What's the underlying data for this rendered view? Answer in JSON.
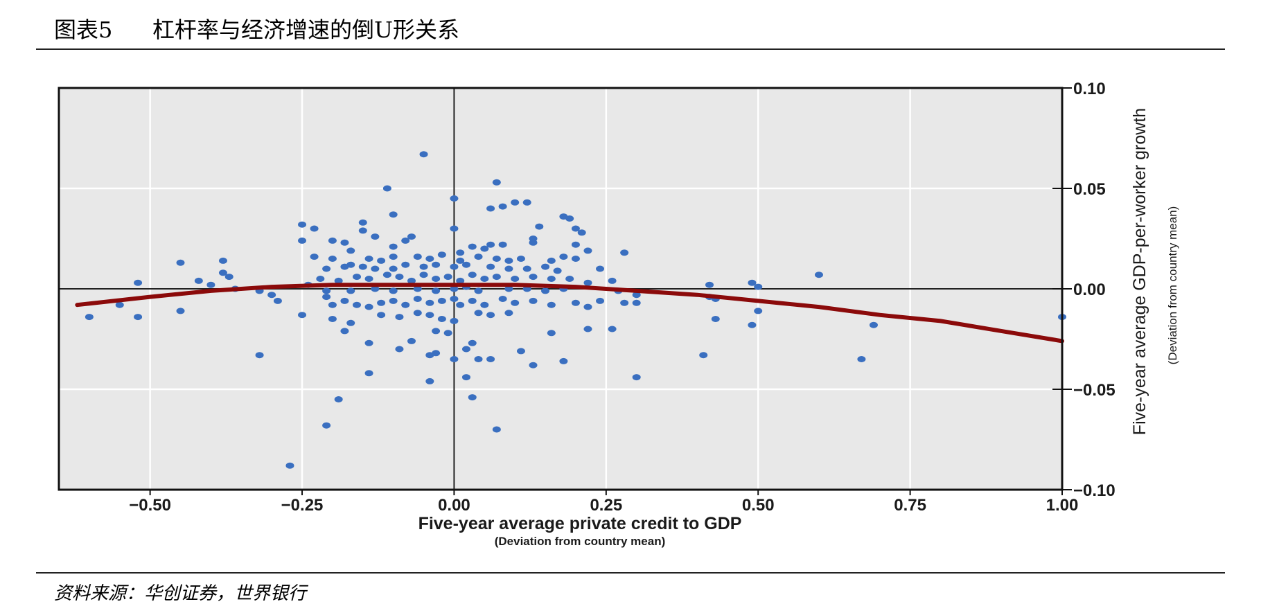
{
  "header": {
    "figure_number": "图表5",
    "title": "杠杆率与经济增速的倒U形关系"
  },
  "source": "资料来源：华创证券，世界银行",
  "chart_data": {
    "type": "scatter",
    "xlabel": "Five-year average private credit to GDP",
    "xlabel_sub": "(Deviation from country mean)",
    "ylabel": "Five-year average GDP-per-worker growth",
    "ylabel_sub": "(Deviation from country mean)",
    "xlim": [
      -0.65,
      1.0
    ],
    "ylim": [
      -0.1,
      0.1
    ],
    "x_ticks": [
      -0.5,
      -0.25,
      0.0,
      0.25,
      0.5,
      0.75,
      1.0
    ],
    "x_tick_labels": [
      "−0.50",
      "−0.25",
      "0.00",
      "0.25",
      "0.50",
      "0.75",
      "1.00"
    ],
    "y_ticks": [
      0.1,
      0.05,
      0.0,
      -0.05,
      -0.1
    ],
    "y_tick_labels": [
      "0.10",
      "0.05",
      "0.00",
      "−0.05",
      "−0.10"
    ],
    "y_axis_side": "right",
    "grid": true,
    "colors": {
      "background": "#e8e8e8",
      "points": "#3a6fc0",
      "curve": "#8b0a0a",
      "grid": "#ffffff"
    },
    "fit_curve": {
      "type": "quadratic",
      "points": [
        [
          -0.62,
          -0.008
        ],
        [
          -0.5,
          -0.004
        ],
        [
          -0.4,
          -0.001
        ],
        [
          -0.3,
          0.001
        ],
        [
          -0.2,
          0.002
        ],
        [
          -0.1,
          0.002
        ],
        [
          0.0,
          0.002
        ],
        [
          0.1,
          0.002
        ],
        [
          0.2,
          0.001
        ],
        [
          0.3,
          -0.001
        ],
        [
          0.4,
          -0.003
        ],
        [
          0.5,
          -0.006
        ],
        [
          0.6,
          -0.009
        ],
        [
          0.7,
          -0.013
        ],
        [
          0.8,
          -0.016
        ],
        [
          0.9,
          -0.021
        ],
        [
          1.0,
          -0.026
        ]
      ]
    },
    "points": [
      [
        -0.05,
        0.067
      ],
      [
        0.07,
        0.053
      ],
      [
        0.0,
        0.045
      ],
      [
        -0.11,
        0.05
      ],
      [
        0.1,
        0.043
      ],
      [
        0.12,
        0.043
      ],
      [
        0.06,
        0.04
      ],
      [
        0.08,
        0.041
      ],
      [
        -0.1,
        0.037
      ],
      [
        0.18,
        0.036
      ],
      [
        0.19,
        0.035
      ],
      [
        -0.25,
        0.032
      ],
      [
        -0.15,
        0.033
      ],
      [
        -0.23,
        0.03
      ],
      [
        0.0,
        0.03
      ],
      [
        0.2,
        0.03
      ],
      [
        0.14,
        0.031
      ],
      [
        -0.15,
        0.029
      ],
      [
        0.21,
        0.028
      ],
      [
        -0.25,
        0.024
      ],
      [
        -0.13,
        0.026
      ],
      [
        -0.07,
        0.026
      ],
      [
        -0.2,
        0.024
      ],
      [
        -0.18,
        0.023
      ],
      [
        0.13,
        0.025
      ],
      [
        -0.08,
        0.024
      ],
      [
        0.06,
        0.022
      ],
      [
        0.08,
        0.022
      ],
      [
        -0.1,
        0.021
      ],
      [
        0.03,
        0.021
      ],
      [
        0.05,
        0.02
      ],
      [
        -0.17,
        0.019
      ],
      [
        0.13,
        0.023
      ],
      [
        0.2,
        0.022
      ],
      [
        0.22,
        0.019
      ],
      [
        0.01,
        0.018
      ],
      [
        0.28,
        0.018
      ],
      [
        -0.45,
        0.013
      ],
      [
        -0.38,
        0.014
      ],
      [
        -0.23,
        0.016
      ],
      [
        -0.2,
        0.015
      ],
      [
        -0.17,
        0.012
      ],
      [
        -0.14,
        0.015
      ],
      [
        -0.12,
        0.014
      ],
      [
        -0.1,
        0.016
      ],
      [
        -0.06,
        0.016
      ],
      [
        -0.04,
        0.015
      ],
      [
        -0.02,
        0.017
      ],
      [
        0.01,
        0.014
      ],
      [
        0.04,
        0.016
      ],
      [
        0.07,
        0.015
      ],
      [
        0.09,
        0.014
      ],
      [
        0.11,
        0.015
      ],
      [
        0.16,
        0.014
      ],
      [
        0.18,
        0.016
      ],
      [
        0.2,
        0.015
      ],
      [
        -0.38,
        0.008
      ],
      [
        -0.21,
        0.01
      ],
      [
        -0.18,
        0.011
      ],
      [
        -0.15,
        0.011
      ],
      [
        -0.13,
        0.01
      ],
      [
        -0.1,
        0.01
      ],
      [
        -0.08,
        0.012
      ],
      [
        -0.05,
        0.011
      ],
      [
        -0.03,
        0.012
      ],
      [
        0.0,
        0.011
      ],
      [
        0.02,
        0.012
      ],
      [
        0.06,
        0.011
      ],
      [
        0.09,
        0.01
      ],
      [
        0.12,
        0.01
      ],
      [
        0.15,
        0.011
      ],
      [
        0.17,
        0.009
      ],
      [
        0.24,
        0.01
      ],
      [
        -0.52,
        0.003
      ],
      [
        -0.42,
        0.004
      ],
      [
        -0.4,
        0.002
      ],
      [
        -0.37,
        0.006
      ],
      [
        -0.24,
        0.002
      ],
      [
        -0.22,
        0.005
      ],
      [
        -0.19,
        0.004
      ],
      [
        -0.16,
        0.006
      ],
      [
        -0.14,
        0.005
      ],
      [
        -0.11,
        0.007
      ],
      [
        -0.09,
        0.006
      ],
      [
        -0.07,
        0.004
      ],
      [
        -0.05,
        0.007
      ],
      [
        -0.03,
        0.005
      ],
      [
        -0.01,
        0.006
      ],
      [
        0.01,
        0.004
      ],
      [
        0.03,
        0.007
      ],
      [
        0.05,
        0.005
      ],
      [
        0.07,
        0.006
      ],
      [
        0.1,
        0.005
      ],
      [
        0.13,
        0.006
      ],
      [
        0.16,
        0.005
      ],
      [
        0.19,
        0.005
      ],
      [
        0.22,
        0.003
      ],
      [
        0.26,
        0.004
      ],
      [
        0.49,
        0.003
      ],
      [
        0.42,
        0.002
      ],
      [
        0.6,
        0.007
      ],
      [
        0.5,
        0.001
      ],
      [
        -0.36,
        0.0
      ],
      [
        -0.32,
        -0.001
      ],
      [
        -0.21,
        -0.001
      ],
      [
        -0.17,
        -0.001
      ],
      [
        -0.13,
        0.0
      ],
      [
        -0.1,
        -0.001
      ],
      [
        -0.06,
        0.0
      ],
      [
        -0.03,
        -0.001
      ],
      [
        0.0,
        0.0
      ],
      [
        0.02,
        0.001
      ],
      [
        0.04,
        -0.001
      ],
      [
        0.09,
        0.0
      ],
      [
        0.12,
        0.0
      ],
      [
        0.15,
        -0.001
      ],
      [
        0.18,
        0.0
      ],
      [
        0.27,
        -0.001
      ],
      [
        0.3,
        -0.003
      ],
      [
        -0.6,
        -0.014
      ],
      [
        -0.55,
        -0.008
      ],
      [
        -0.52,
        -0.014
      ],
      [
        -0.45,
        -0.011
      ],
      [
        -0.3,
        -0.003
      ],
      [
        -0.29,
        -0.006
      ],
      [
        -0.25,
        -0.013
      ],
      [
        -0.21,
        -0.004
      ],
      [
        -0.2,
        -0.008
      ],
      [
        -0.18,
        -0.006
      ],
      [
        -0.16,
        -0.008
      ],
      [
        -0.14,
        -0.009
      ],
      [
        -0.12,
        -0.007
      ],
      [
        -0.1,
        -0.006
      ],
      [
        -0.08,
        -0.008
      ],
      [
        -0.06,
        -0.005
      ],
      [
        -0.04,
        -0.007
      ],
      [
        -0.02,
        -0.006
      ],
      [
        0.0,
        -0.005
      ],
      [
        0.01,
        -0.008
      ],
      [
        0.03,
        -0.006
      ],
      [
        0.05,
        -0.008
      ],
      [
        0.08,
        -0.005
      ],
      [
        0.1,
        -0.007
      ],
      [
        0.13,
        -0.006
      ],
      [
        0.16,
        -0.008
      ],
      [
        0.2,
        -0.007
      ],
      [
        0.22,
        -0.009
      ],
      [
        0.24,
        -0.006
      ],
      [
        0.28,
        -0.007
      ],
      [
        0.3,
        -0.007
      ],
      [
        0.42,
        -0.004
      ],
      [
        0.43,
        -0.005
      ],
      [
        0.5,
        -0.011
      ],
      [
        -0.2,
        -0.015
      ],
      [
        -0.17,
        -0.017
      ],
      [
        -0.12,
        -0.013
      ],
      [
        -0.09,
        -0.014
      ],
      [
        -0.06,
        -0.012
      ],
      [
        -0.04,
        -0.013
      ],
      [
        -0.02,
        -0.015
      ],
      [
        0.0,
        -0.016
      ],
      [
        0.04,
        -0.012
      ],
      [
        0.06,
        -0.013
      ],
      [
        0.09,
        -0.012
      ],
      [
        0.43,
        -0.015
      ],
      [
        0.49,
        -0.018
      ],
      [
        0.69,
        -0.018
      ],
      [
        -0.18,
        -0.021
      ],
      [
        -0.03,
        -0.021
      ],
      [
        -0.01,
        -0.022
      ],
      [
        0.03,
        -0.027
      ],
      [
        0.16,
        -0.022
      ],
      [
        0.22,
        -0.02
      ],
      [
        0.26,
        -0.02
      ],
      [
        -0.14,
        -0.027
      ],
      [
        -0.09,
        -0.03
      ],
      [
        -0.07,
        -0.026
      ],
      [
        -0.03,
        -0.032
      ],
      [
        -0.04,
        -0.033
      ],
      [
        0.02,
        -0.03
      ],
      [
        0.11,
        -0.031
      ],
      [
        -0.32,
        -0.033
      ],
      [
        0.0,
        -0.035
      ],
      [
        0.04,
        -0.035
      ],
      [
        0.06,
        -0.035
      ],
      [
        0.13,
        -0.038
      ],
      [
        0.18,
        -0.036
      ],
      [
        0.41,
        -0.033
      ],
      [
        0.67,
        -0.035
      ],
      [
        -0.14,
        -0.042
      ],
      [
        -0.04,
        -0.046
      ],
      [
        0.02,
        -0.044
      ],
      [
        0.3,
        -0.044
      ],
      [
        -0.19,
        -0.055
      ],
      [
        0.03,
        -0.054
      ],
      [
        -0.21,
        -0.068
      ],
      [
        0.07,
        -0.07
      ],
      [
        -0.27,
        -0.088
      ],
      [
        1.0,
        -0.014
      ]
    ]
  }
}
